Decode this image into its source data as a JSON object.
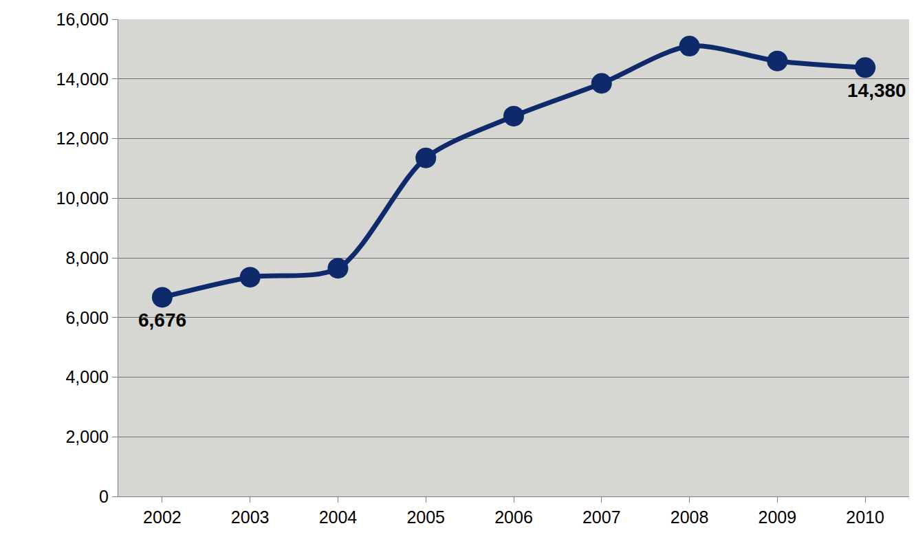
{
  "chart_data": {
    "type": "line",
    "categories": [
      "2002",
      "2003",
      "2004",
      "2005",
      "2006",
      "2007",
      "2008",
      "2009",
      "2010"
    ],
    "values": [
      6676,
      7350,
      7650,
      11350,
      12750,
      13850,
      15100,
      14600,
      14380
    ],
    "value_labels": [
      "6,676",
      null,
      null,
      null,
      null,
      null,
      null,
      null,
      "14,380"
    ],
    "color": "#0f2a6b",
    "marker": "circle",
    "line_style": "spline",
    "ylim": [
      0,
      16000
    ],
    "yticks": [
      0,
      {
        "value": 2000,
        "label": "2,000"
      },
      {
        "value": 4000,
        "label": "4,000"
      },
      {
        "value": 6000,
        "label": "6,000"
      },
      {
        "value": 8000,
        "label": "8,000"
      },
      {
        "value": 10000,
        "label": "10,000"
      },
      {
        "value": 12000,
        "label": "12,000"
      },
      {
        "value": 14000,
        "label": "14,000"
      },
      {
        "value": 16000,
        "label": "16,000"
      }
    ],
    "grid": true
  }
}
